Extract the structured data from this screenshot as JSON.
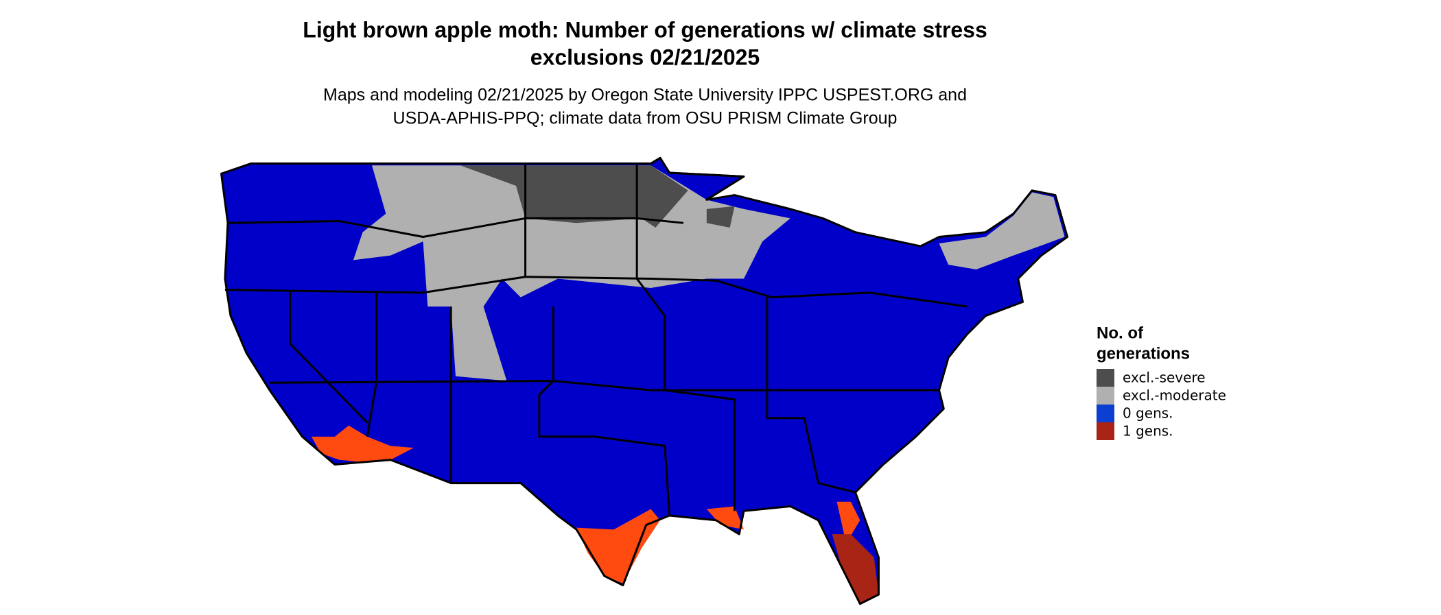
{
  "title": {
    "line1": "Light brown apple moth: Number of generations w/ climate stress",
    "line2": "exclusions 02/21/2025"
  },
  "subtitle": {
    "line1": "Maps and modeling 02/21/2025 by Oregon State University IPPC USPEST.ORG and",
    "line2": "USDA-APHIS-PPQ; climate data from OSU PRISM Climate Group"
  },
  "legend": {
    "title": {
      "line1": "No. of",
      "line2": "generations"
    },
    "items": [
      {
        "label": "excl.-severe",
        "color": "#4d4d4d"
      },
      {
        "label": "excl.-moderate",
        "color": "#b0b0b0"
      },
      {
        "label": "0 gens.",
        "color": "#0b3fd1"
      },
      {
        "label": "1 gens.",
        "color": "#a82516"
      }
    ]
  }
}
